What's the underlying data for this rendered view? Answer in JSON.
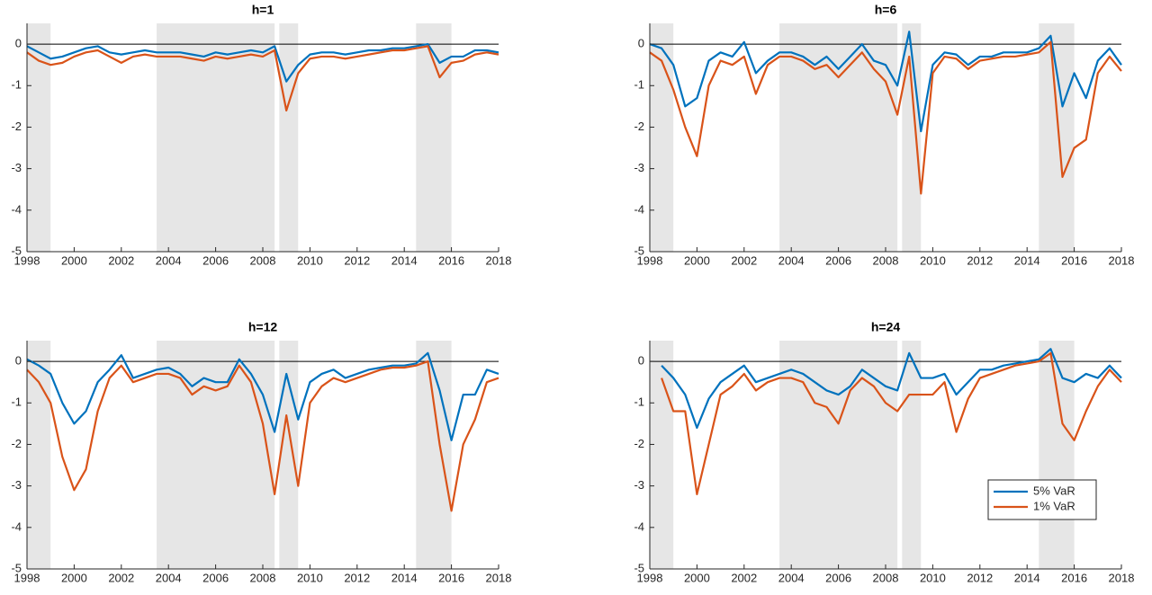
{
  "chart_data": [
    {
      "type": "line",
      "title": "h=1",
      "x": [
        1998,
        1998.5,
        1999,
        1999.5,
        2000,
        2000.5,
        2001,
        2001.5,
        2002,
        2002.5,
        2003,
        2003.5,
        2004,
        2004.5,
        2005,
        2005.5,
        2006,
        2006.5,
        2007,
        2007.5,
        2008,
        2008.5,
        2009,
        2009.5,
        2010,
        2010.5,
        2011,
        2011.5,
        2012,
        2012.5,
        2013,
        2013.5,
        2014,
        2014.5,
        2015,
        2015.5,
        2016,
        2016.5,
        2017,
        2017.5,
        2018
      ],
      "series": [
        {
          "color": "#0072bd",
          "values": [
            -0.05,
            -0.2,
            -0.35,
            -0.3,
            -0.2,
            -0.1,
            -0.05,
            -0.2,
            -0.25,
            -0.2,
            -0.15,
            -0.2,
            -0.2,
            -0.2,
            -0.25,
            -0.3,
            -0.2,
            -0.25,
            -0.2,
            -0.15,
            -0.2,
            -0.05,
            -0.9,
            -0.5,
            -0.25,
            -0.2,
            -0.2,
            -0.25,
            -0.2,
            -0.15,
            -0.15,
            -0.1,
            -0.1,
            -0.05,
            0,
            -0.45,
            -0.3,
            -0.3,
            -0.15,
            -0.15,
            -0.2
          ]
        },
        {
          "color": "#d95319",
          "values": [
            -0.2,
            -0.4,
            -0.5,
            -0.45,
            -0.3,
            -0.2,
            -0.15,
            -0.3,
            -0.45,
            -0.3,
            -0.25,
            -0.3,
            -0.3,
            -0.3,
            -0.35,
            -0.4,
            -0.3,
            -0.35,
            -0.3,
            -0.25,
            -0.3,
            -0.15,
            -1.6,
            -0.7,
            -0.35,
            -0.3,
            -0.3,
            -0.35,
            -0.3,
            -0.25,
            -0.2,
            -0.15,
            -0.15,
            -0.1,
            -0.05,
            -0.8,
            -0.45,
            -0.4,
            -0.25,
            -0.2,
            -0.25
          ]
        }
      ],
      "shaded": [
        [
          1998,
          1999
        ],
        [
          2003.5,
          2008.5
        ],
        [
          2008.7,
          2009.5
        ],
        [
          2014.5,
          2016
        ]
      ],
      "xlim": [
        1998,
        2018
      ],
      "xticks": [
        1998,
        2000,
        2002,
        2004,
        2006,
        2008,
        2010,
        2012,
        2014,
        2016,
        2018
      ],
      "ylim": [
        -5,
        0.5
      ],
      "yticks": [
        -5,
        -4,
        -3,
        -2,
        -1,
        0
      ]
    },
    {
      "type": "line",
      "title": "h=6",
      "x": [
        1998,
        1998.5,
        1999,
        1999.5,
        2000,
        2000.5,
        2001,
        2001.5,
        2002,
        2002.5,
        2003,
        2003.5,
        2004,
        2004.5,
        2005,
        2005.5,
        2006,
        2006.5,
        2007,
        2007.5,
        2008,
        2008.5,
        2009,
        2009.5,
        2010,
        2010.5,
        2011,
        2011.5,
        2012,
        2012.5,
        2013,
        2013.5,
        2014,
        2014.5,
        2015,
        2015.5,
        2016,
        2016.5,
        2017,
        2017.5,
        2018
      ],
      "series": [
        {
          "color": "#0072bd",
          "values": [
            0,
            -0.1,
            -0.5,
            -1.5,
            -1.3,
            -0.4,
            -0.2,
            -0.3,
            0.05,
            -0.7,
            -0.4,
            -0.2,
            -0.2,
            -0.3,
            -0.5,
            -0.3,
            -0.6,
            -0.3,
            0,
            -0.4,
            -0.5,
            -1.0,
            0.3,
            -2.1,
            -0.5,
            -0.2,
            -0.25,
            -0.5,
            -0.3,
            -0.3,
            -0.2,
            -0.2,
            -0.2,
            -0.1,
            0.2,
            -1.5,
            -0.7,
            -1.3,
            -0.4,
            -0.1,
            -0.5
          ]
        },
        {
          "color": "#d95319",
          "values": [
            -0.2,
            -0.4,
            -1.1,
            -2.0,
            -2.7,
            -1.0,
            -0.4,
            -0.5,
            -0.3,
            -1.2,
            -0.5,
            -0.3,
            -0.3,
            -0.4,
            -0.6,
            -0.5,
            -0.8,
            -0.5,
            -0.2,
            -0.6,
            -0.9,
            -1.7,
            -0.3,
            -3.6,
            -0.7,
            -0.3,
            -0.35,
            -0.6,
            -0.4,
            -0.35,
            -0.3,
            -0.3,
            -0.25,
            -0.2,
            0.05,
            -3.2,
            -2.5,
            -2.3,
            -0.7,
            -0.3,
            -0.65
          ]
        }
      ],
      "shaded": [
        [
          1998,
          1999
        ],
        [
          2003.5,
          2008.5
        ],
        [
          2008.7,
          2009.5
        ],
        [
          2014.5,
          2016
        ]
      ],
      "xlim": [
        1998,
        2018
      ],
      "xticks": [
        1998,
        2000,
        2002,
        2004,
        2006,
        2008,
        2010,
        2012,
        2014,
        2016,
        2018
      ],
      "ylim": [
        -5,
        0.5
      ],
      "yticks": [
        -5,
        -4,
        -3,
        -2,
        -1,
        0
      ]
    },
    {
      "type": "line",
      "title": "h=12",
      "x": [
        1998,
        1998.5,
        1999,
        1999.5,
        2000,
        2000.5,
        2001,
        2001.5,
        2002,
        2002.5,
        2003,
        2003.5,
        2004,
        2004.5,
        2005,
        2005.5,
        2006,
        2006.5,
        2007,
        2007.5,
        2008,
        2008.5,
        2009,
        2009.5,
        2010,
        2010.5,
        2011,
        2011.5,
        2012,
        2012.5,
        2013,
        2013.5,
        2014,
        2014.5,
        2015,
        2015.5,
        2016,
        2016.5,
        2017,
        2017.5,
        2018
      ],
      "series": [
        {
          "color": "#0072bd",
          "values": [
            0.05,
            -0.1,
            -0.3,
            -1.0,
            -1.5,
            -1.2,
            -0.5,
            -0.2,
            0.15,
            -0.4,
            -0.3,
            -0.2,
            -0.15,
            -0.3,
            -0.6,
            -0.4,
            -0.5,
            -0.5,
            0.05,
            -0.3,
            -0.8,
            -1.7,
            -0.3,
            -1.4,
            -0.5,
            -0.3,
            -0.2,
            -0.4,
            -0.3,
            -0.2,
            -0.15,
            -0.1,
            -0.1,
            -0.05,
            0.2,
            -0.7,
            -1.9,
            -0.8,
            -0.8,
            -0.2,
            -0.3
          ]
        },
        {
          "color": "#d95319",
          "values": [
            -0.2,
            -0.5,
            -1.0,
            -2.3,
            -3.1,
            -2.6,
            -1.2,
            -0.4,
            -0.1,
            -0.5,
            -0.4,
            -0.3,
            -0.3,
            -0.4,
            -0.8,
            -0.6,
            -0.7,
            -0.6,
            -0.1,
            -0.5,
            -1.5,
            -3.2,
            -1.3,
            -3.0,
            -1.0,
            -0.6,
            -0.4,
            -0.5,
            -0.4,
            -0.3,
            -0.2,
            -0.15,
            -0.15,
            -0.1,
            0,
            -2.0,
            -3.6,
            -2.0,
            -1.4,
            -0.5,
            -0.4
          ]
        }
      ],
      "shaded": [
        [
          1998,
          1999
        ],
        [
          2003.5,
          2008.5
        ],
        [
          2008.7,
          2009.5
        ],
        [
          2014.5,
          2016
        ]
      ],
      "xlim": [
        1998,
        2018
      ],
      "xticks": [
        1998,
        2000,
        2002,
        2004,
        2006,
        2008,
        2010,
        2012,
        2014,
        2016,
        2018
      ],
      "ylim": [
        -5,
        0.5
      ],
      "yticks": [
        -5,
        -4,
        -3,
        -2,
        -1,
        0
      ]
    },
    {
      "type": "line",
      "title": "h=24",
      "x": [
        1998,
        1998.5,
        1999,
        1999.5,
        2000,
        2000.5,
        2001,
        2001.5,
        2002,
        2002.5,
        2003,
        2003.5,
        2004,
        2004.5,
        2005,
        2005.5,
        2006,
        2006.5,
        2007,
        2007.5,
        2008,
        2008.5,
        2009,
        2009.5,
        2010,
        2010.5,
        2011,
        2011.5,
        2012,
        2012.5,
        2013,
        2013.5,
        2014,
        2014.5,
        2015,
        2015.5,
        2016,
        2016.5,
        2017,
        2017.5,
        2018
      ],
      "series": [
        {
          "name": "5% VaR",
          "color": "#0072bd",
          "values": [
            null,
            -0.1,
            -0.4,
            -0.8,
            -1.6,
            -0.9,
            -0.5,
            -0.3,
            -0.1,
            -0.5,
            -0.4,
            -0.3,
            -0.2,
            -0.3,
            -0.5,
            -0.7,
            -0.8,
            -0.6,
            -0.2,
            -0.4,
            -0.6,
            -0.7,
            0.2,
            -0.4,
            -0.4,
            -0.3,
            -0.8,
            -0.5,
            -0.2,
            -0.2,
            -0.1,
            -0.05,
            0,
            0.05,
            0.3,
            -0.4,
            -0.5,
            -0.3,
            -0.4,
            -0.1,
            -0.4
          ]
        },
        {
          "name": "1% VaR",
          "color": "#d95319",
          "values": [
            null,
            -0.4,
            -1.2,
            -1.2,
            -3.2,
            -2.0,
            -0.8,
            -0.6,
            -0.3,
            -0.7,
            -0.5,
            -0.4,
            -0.4,
            -0.5,
            -1.0,
            -1.1,
            -1.5,
            -0.7,
            -0.4,
            -0.6,
            -1.0,
            -1.2,
            -0.8,
            -0.8,
            -0.8,
            -0.5,
            -1.7,
            -0.9,
            -0.4,
            -0.3,
            -0.2,
            -0.1,
            -0.05,
            0,
            0.2,
            -1.5,
            -1.9,
            -1.2,
            -0.6,
            -0.2,
            -0.5
          ]
        }
      ],
      "shaded": [
        [
          1998,
          1999
        ],
        [
          2003.5,
          2008.5
        ],
        [
          2008.7,
          2009.5
        ],
        [
          2014.5,
          2016
        ]
      ],
      "xlim": [
        1998,
        2018
      ],
      "xticks": [
        1998,
        2000,
        2002,
        2004,
        2006,
        2008,
        2010,
        2012,
        2014,
        2016,
        2018
      ],
      "ylim": [
        -5,
        0.5
      ],
      "yticks": [
        -5,
        -4,
        -3,
        -2,
        -1,
        0
      ],
      "legend": "lower right"
    }
  ]
}
